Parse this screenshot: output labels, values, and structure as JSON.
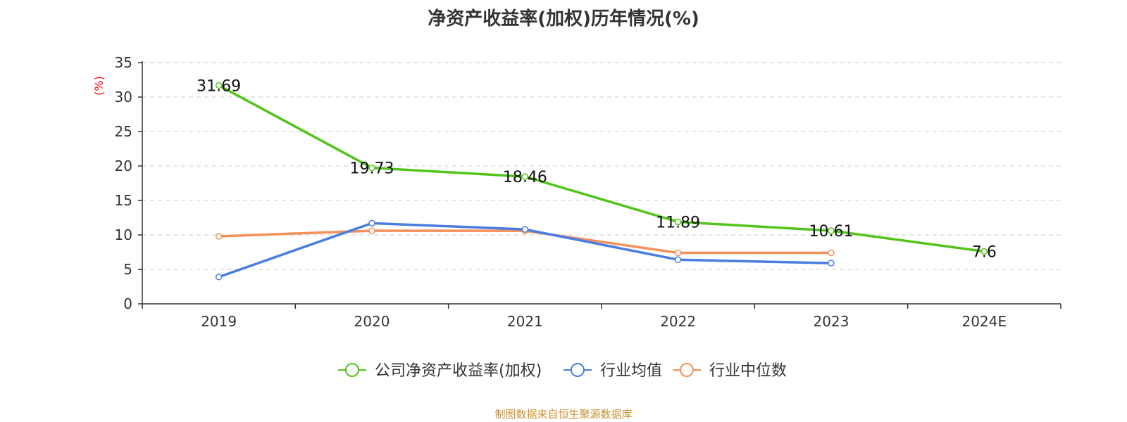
{
  "chart_data": {
    "type": "line",
    "title": "净资产收益率(加权)历年情况(%)",
    "ylabel": "(%)",
    "ylabel_color": "#ff0000",
    "categories": [
      "2019",
      "2020",
      "2021",
      "2022",
      "2023",
      "2024E"
    ],
    "ylim": [
      0,
      35
    ],
    "yticks": [
      0,
      5,
      10,
      15,
      20,
      25,
      30,
      35
    ],
    "grid": true,
    "legend_position": "bottom",
    "series": [
      {
        "name": "公司净资产收益率(加权)",
        "color": "#52c41a",
        "values": [
          31.69,
          19.73,
          18.46,
          11.89,
          10.61,
          7.6
        ],
        "show_labels": true
      },
      {
        "name": "行业均值",
        "color": "#4a7de0",
        "values": [
          3.9,
          11.7,
          10.8,
          6.4,
          5.9,
          null
        ],
        "show_labels": false
      },
      {
        "name": "行业中位数",
        "color": "#f4905a",
        "values": [
          9.8,
          10.6,
          10.6,
          7.4,
          7.4,
          null
        ],
        "show_labels": false
      }
    ],
    "data_labels": [
      "31.69",
      "19.73",
      "18.46",
      "11.89",
      "10.61",
      "7.6"
    ]
  },
  "footer": {
    "source": "制图数据来自恒生聚源数据库"
  }
}
